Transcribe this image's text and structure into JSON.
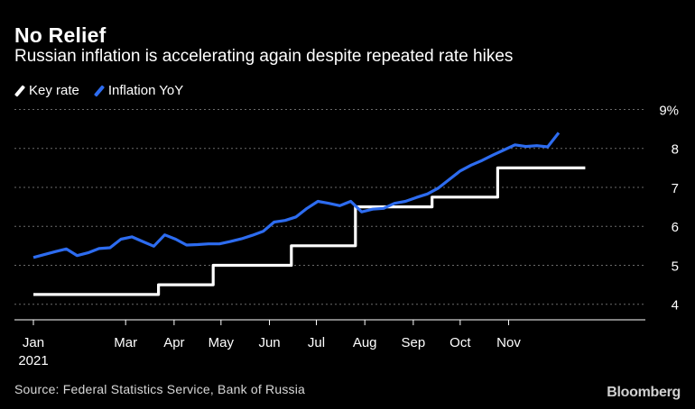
{
  "header": {
    "title": "No Relief",
    "subtitle": "Russian inflation is accelerating again despite repeated rate hikes"
  },
  "legend": [
    {
      "label": "Key rate",
      "color": "#ffffff"
    },
    {
      "label": "Inflation YoY",
      "color": "#2d6cf0"
    }
  ],
  "footer": {
    "source": "Source: Federal Statistics Service, Bank of Russia",
    "brand": "Bloomberg"
  },
  "chart_data": {
    "type": "line",
    "title": "No Relief",
    "subtitle": "Russian inflation is accelerating again despite repeated rate hikes",
    "x_start": "2021-01-01",
    "xlim": [
      "2020-12-31",
      "2021-12-31"
    ],
    "ylim": [
      3.6,
      9.0
    ],
    "y_ticks": [
      4,
      5,
      6,
      7,
      8,
      9
    ],
    "y_tick_labels": [
      "4",
      "5",
      "6",
      "7",
      "8",
      "9%"
    ],
    "x_ticks": [
      {
        "date": "2021-01-01",
        "label": "Jan",
        "sublabel": "2021"
      },
      {
        "date": "2021-03-01",
        "label": "Mar"
      },
      {
        "date": "2021-04-01",
        "label": "Apr"
      },
      {
        "date": "2021-05-01",
        "label": "May"
      },
      {
        "date": "2021-06-01",
        "label": "Jun"
      },
      {
        "date": "2021-07-01",
        "label": "Jul"
      },
      {
        "date": "2021-08-01",
        "label": "Aug"
      },
      {
        "date": "2021-09-01",
        "label": "Sep"
      },
      {
        "date": "2021-10-01",
        "label": "Oct"
      },
      {
        "date": "2021-11-01",
        "label": "Nov"
      }
    ],
    "grid": true,
    "series": [
      {
        "name": "Key rate",
        "color": "#ffffff",
        "step": true,
        "points": [
          [
            "2021-01-01",
            4.25
          ],
          [
            "2021-03-22",
            4.5
          ],
          [
            "2021-04-26",
            5.0
          ],
          [
            "2021-06-15",
            5.5
          ],
          [
            "2021-07-26",
            6.5
          ],
          [
            "2021-09-13",
            6.75
          ],
          [
            "2021-10-25",
            7.5
          ],
          [
            "2021-12-20",
            7.5
          ]
        ]
      },
      {
        "name": "Inflation YoY",
        "color": "#2d6cf0",
        "step": false,
        "points": [
          [
            "2021-01-01",
            5.2
          ],
          [
            "2021-01-15",
            5.35
          ],
          [
            "2021-01-22",
            5.42
          ],
          [
            "2021-01-29",
            5.25
          ],
          [
            "2021-02-05",
            5.32
          ],
          [
            "2021-02-12",
            5.43
          ],
          [
            "2021-02-19",
            5.45
          ],
          [
            "2021-02-26",
            5.67
          ],
          [
            "2021-03-05",
            5.73
          ],
          [
            "2021-03-12",
            5.61
          ],
          [
            "2021-03-19",
            5.49
          ],
          [
            "2021-03-26",
            5.78
          ],
          [
            "2021-04-02",
            5.67
          ],
          [
            "2021-04-09",
            5.52
          ],
          [
            "2021-04-16",
            5.53
          ],
          [
            "2021-04-23",
            5.55
          ],
          [
            "2021-04-30",
            5.55
          ],
          [
            "2021-05-07",
            5.61
          ],
          [
            "2021-05-14",
            5.68
          ],
          [
            "2021-05-21",
            5.77
          ],
          [
            "2021-05-28",
            5.87
          ],
          [
            "2021-06-04",
            6.11
          ],
          [
            "2021-06-11",
            6.15
          ],
          [
            "2021-06-18",
            6.24
          ],
          [
            "2021-06-25",
            6.46
          ],
          [
            "2021-07-02",
            6.64
          ],
          [
            "2021-07-09",
            6.59
          ],
          [
            "2021-07-16",
            6.53
          ],
          [
            "2021-07-23",
            6.64
          ],
          [
            "2021-07-30",
            6.37
          ],
          [
            "2021-08-06",
            6.44
          ],
          [
            "2021-08-13",
            6.46
          ],
          [
            "2021-08-20",
            6.59
          ],
          [
            "2021-08-27",
            6.64
          ],
          [
            "2021-09-03",
            6.74
          ],
          [
            "2021-09-10",
            6.83
          ],
          [
            "2021-09-17",
            6.98
          ],
          [
            "2021-09-24",
            7.2
          ],
          [
            "2021-10-01",
            7.42
          ],
          [
            "2021-10-08",
            7.57
          ],
          [
            "2021-10-15",
            7.69
          ],
          [
            "2021-10-22",
            7.83
          ],
          [
            "2021-10-29",
            7.96
          ],
          [
            "2021-11-05",
            8.09
          ],
          [
            "2021-11-12",
            8.05
          ],
          [
            "2021-11-19",
            8.07
          ],
          [
            "2021-11-26",
            8.04
          ],
          [
            "2021-12-03",
            8.4
          ]
        ]
      }
    ]
  }
}
